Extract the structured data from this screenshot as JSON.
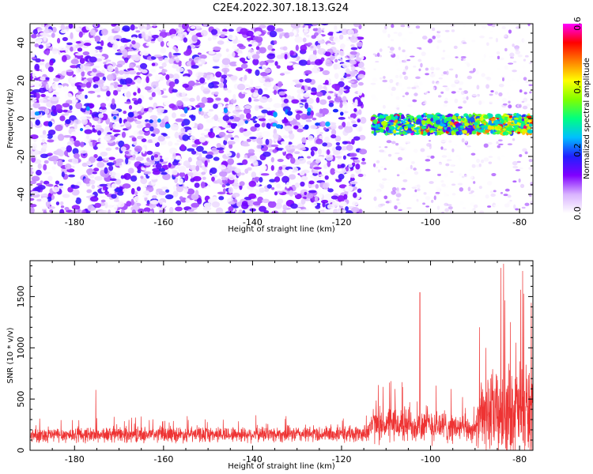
{
  "figure_title": "C2E4.2022.307.18.13.G24",
  "chart_data": [
    {
      "type": "heatmap",
      "xlabel": "Height of straight line (km)",
      "ylabel": "Frequency (Hz)",
      "xlim": [
        -190,
        -77
      ],
      "ylim": [
        -50,
        50
      ],
      "x_ticks": [
        -180,
        -160,
        -140,
        -120,
        -100,
        -80
      ],
      "y_ticks": [
        -40,
        -20,
        0,
        20,
        40
      ],
      "colorbar": {
        "label": "Normalized spectral amplitude",
        "range": [
          0.0,
          0.6
        ],
        "ticks": [
          0.0,
          0.2,
          0.4,
          0.6
        ],
        "colors": [
          "#ffffff",
          "#d9b3ff",
          "#8000ff",
          "#2020ff",
          "#00bfff",
          "#00ff80",
          "#80ff00",
          "#ffff00",
          "#ff8000",
          "#ff0000",
          "#ff00ff"
        ]
      },
      "features": {
        "noise_region_x": [
          -190,
          -115
        ],
        "signal_band_x": [
          -113,
          -77
        ],
        "signal_band_frequency": -3,
        "peak_amplitude": 0.6
      }
    },
    {
      "type": "line",
      "xlabel": "Height of straight line (km)",
      "ylabel": "SNR (10 * v/v)",
      "xlim": [
        -190,
        -77
      ],
      "ylim": [
        0,
        1850
      ],
      "x_ticks": [
        -180,
        -160,
        -140,
        -120,
        -100,
        -80
      ],
      "y_ticks": [
        0,
        500,
        1000,
        1500
      ],
      "color": "#ee3333",
      "envelope": [
        {
          "x": -190,
          "baseline": 150,
          "spread": 130
        },
        {
          "x": -115,
          "baseline": 160,
          "spread": 140
        },
        {
          "x": -113,
          "baseline": 250,
          "spread": 300
        },
        {
          "x": -100,
          "baseline": 250,
          "spread": 330
        },
        {
          "x": -90,
          "baseline": 200,
          "spread": 200
        },
        {
          "x": -88,
          "baseline": 350,
          "spread": 700
        },
        {
          "x": -77,
          "baseline": 400,
          "spread": 900
        }
      ],
      "spikes": [
        {
          "x": -175.2,
          "y": 590
        },
        {
          "x": -102.4,
          "y": 1540
        },
        {
          "x": -89.0,
          "y": 1200
        },
        {
          "x": -84.2,
          "y": 1780
        },
        {
          "x": -83.6,
          "y": 1820
        },
        {
          "x": -79.3,
          "y": 1750
        },
        {
          "x": -82.1,
          "y": 1250
        },
        {
          "x": -80.8,
          "y": 1050
        }
      ]
    }
  ]
}
